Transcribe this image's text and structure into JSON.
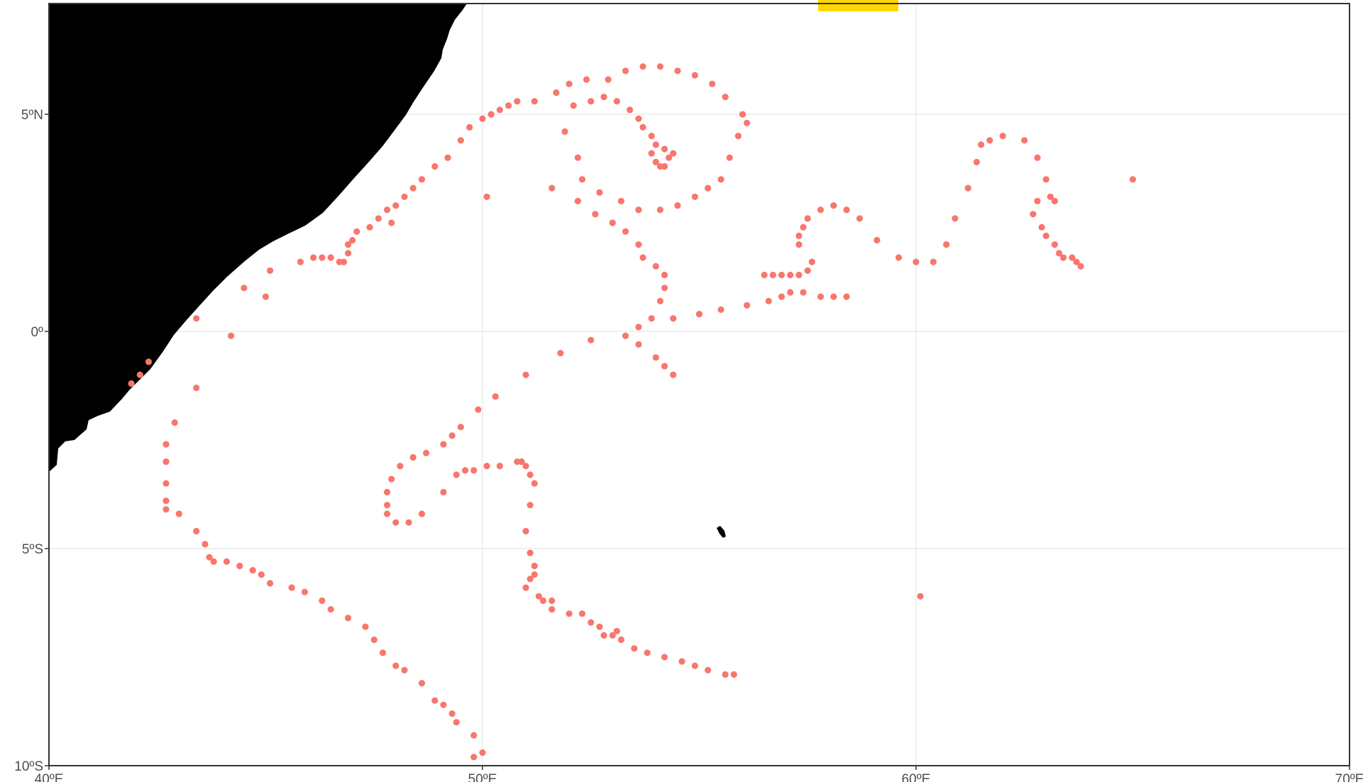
{
  "map": {
    "colors": {
      "points": "#F8766D",
      "land": "#000000",
      "highlight": "#FFD700",
      "grid": "#EBEBEB",
      "frame": "#333333",
      "tick_text": "#4D4D4D"
    },
    "x_axis": {
      "range": [
        40,
        70
      ],
      "ticks": [
        {
          "value": 40,
          "label": "40ºE"
        },
        {
          "value": 50,
          "label": "50ºE"
        },
        {
          "value": 60,
          "label": "60ºE"
        },
        {
          "value": 70,
          "label": "70ºE"
        }
      ]
    },
    "y_axis": {
      "range": [
        -10,
        7.55
      ],
      "ticks": [
        {
          "value": 5,
          "label": "5ºN"
        },
        {
          "value": 0,
          "label": "0º"
        },
        {
          "value": -5,
          "label": "5ºS"
        },
        {
          "value": -10,
          "label": "10ºS"
        }
      ]
    },
    "grid": true,
    "legend": "none"
  },
  "chart_data": {
    "type": "scatter",
    "x_unit": "degrees longitude (E)",
    "y_unit": "degrees latitude (N positive)",
    "points": [
      [
        49.8,
        -9.8
      ],
      [
        50.0,
        -9.7
      ],
      [
        49.8,
        -9.3
      ],
      [
        49.4,
        -9.0
      ],
      [
        49.3,
        -8.8
      ],
      [
        49.1,
        -8.6
      ],
      [
        48.9,
        -8.5
      ],
      [
        48.6,
        -8.1
      ],
      [
        48.2,
        -7.8
      ],
      [
        48.0,
        -7.7
      ],
      [
        47.7,
        -7.4
      ],
      [
        47.5,
        -7.1
      ],
      [
        47.3,
        -6.8
      ],
      [
        46.9,
        -6.6
      ],
      [
        46.5,
        -6.4
      ],
      [
        46.3,
        -6.2
      ],
      [
        45.9,
        -6.0
      ],
      [
        45.6,
        -5.9
      ],
      [
        45.1,
        -5.8
      ],
      [
        44.9,
        -5.6
      ],
      [
        44.7,
        -5.5
      ],
      [
        44.4,
        -5.4
      ],
      [
        44.1,
        -5.3
      ],
      [
        43.8,
        -5.3
      ],
      [
        43.7,
        -5.2
      ],
      [
        43.6,
        -4.9
      ],
      [
        43.4,
        -4.6
      ],
      [
        43.0,
        -4.2
      ],
      [
        42.7,
        -4.1
      ],
      [
        42.7,
        -3.9
      ],
      [
        42.7,
        -3.5
      ],
      [
        42.7,
        -3.0
      ],
      [
        42.7,
        -2.6
      ],
      [
        42.9,
        -2.1
      ],
      [
        43.4,
        -1.3
      ],
      [
        42.3,
        -0.7
      ],
      [
        42.1,
        -1.0
      ],
      [
        41.9,
        -1.2
      ],
      [
        43.4,
        0.3
      ],
      [
        44.2,
        -0.1
      ],
      [
        44.5,
        1.0
      ],
      [
        45.0,
        0.8
      ],
      [
        45.1,
        1.4
      ],
      [
        45.8,
        1.6
      ],
      [
        46.1,
        1.7
      ],
      [
        46.3,
        1.7
      ],
      [
        46.5,
        1.7
      ],
      [
        46.7,
        1.6
      ],
      [
        46.8,
        1.6
      ],
      [
        46.9,
        1.8
      ],
      [
        46.9,
        2.0
      ],
      [
        47.0,
        2.1
      ],
      [
        47.1,
        2.3
      ],
      [
        47.4,
        2.4
      ],
      [
        47.6,
        2.6
      ],
      [
        47.8,
        2.8
      ],
      [
        47.9,
        2.5
      ],
      [
        48.0,
        2.9
      ],
      [
        48.2,
        3.1
      ],
      [
        48.4,
        3.3
      ],
      [
        48.6,
        3.5
      ],
      [
        48.9,
        3.8
      ],
      [
        49.2,
        4.0
      ],
      [
        49.5,
        4.4
      ],
      [
        49.7,
        4.7
      ],
      [
        50.0,
        4.9
      ],
      [
        50.2,
        5.0
      ],
      [
        50.4,
        5.1
      ],
      [
        50.6,
        5.2
      ],
      [
        50.8,
        5.3
      ],
      [
        51.2,
        5.3
      ],
      [
        51.7,
        5.5
      ],
      [
        52.0,
        5.7
      ],
      [
        52.4,
        5.8
      ],
      [
        52.9,
        5.8
      ],
      [
        53.3,
        6.0
      ],
      [
        53.7,
        6.1
      ],
      [
        54.1,
        6.1
      ],
      [
        54.5,
        6.0
      ],
      [
        54.9,
        5.9
      ],
      [
        55.3,
        5.7
      ],
      [
        55.6,
        5.4
      ],
      [
        56.0,
        5.0
      ],
      [
        56.1,
        4.8
      ],
      [
        55.9,
        4.5
      ],
      [
        55.7,
        4.0
      ],
      [
        55.5,
        3.5
      ],
      [
        55.2,
        3.3
      ],
      [
        54.9,
        3.1
      ],
      [
        54.5,
        2.9
      ],
      [
        54.1,
        2.8
      ],
      [
        53.6,
        2.8
      ],
      [
        53.2,
        3.0
      ],
      [
        52.7,
        3.2
      ],
      [
        52.3,
        3.5
      ],
      [
        52.2,
        4.0
      ],
      [
        51.9,
        4.6
      ],
      [
        52.1,
        5.2
      ],
      [
        52.5,
        5.3
      ],
      [
        52.8,
        5.4
      ],
      [
        53.1,
        5.3
      ],
      [
        53.4,
        5.1
      ],
      [
        53.6,
        4.9
      ],
      [
        53.7,
        4.7
      ],
      [
        53.9,
        4.5
      ],
      [
        54.0,
        4.3
      ],
      [
        54.2,
        4.2
      ],
      [
        54.3,
        4.0
      ],
      [
        54.2,
        3.8
      ],
      [
        54.1,
        3.8
      ],
      [
        54.0,
        3.9
      ],
      [
        53.9,
        4.1
      ],
      [
        54.4,
        4.1
      ],
      [
        50.1,
        3.1
      ],
      [
        51.6,
        3.3
      ],
      [
        52.2,
        3.0
      ],
      [
        52.6,
        2.7
      ],
      [
        53.0,
        2.5
      ],
      [
        53.3,
        2.3
      ],
      [
        53.6,
        2.0
      ],
      [
        53.7,
        1.7
      ],
      [
        54.0,
        1.5
      ],
      [
        54.2,
        1.3
      ],
      [
        54.2,
        1.0
      ],
      [
        54.1,
        0.7
      ],
      [
        53.9,
        0.3
      ],
      [
        53.6,
        0.1
      ],
      [
        53.3,
        -0.1
      ],
      [
        53.6,
        -0.3
      ],
      [
        54.0,
        -0.6
      ],
      [
        54.2,
        -0.8
      ],
      [
        54.4,
        -1.0
      ],
      [
        54.4,
        0.3
      ],
      [
        55.0,
        0.4
      ],
      [
        55.5,
        0.5
      ],
      [
        56.1,
        0.6
      ],
      [
        56.6,
        0.7
      ],
      [
        56.9,
        0.8
      ],
      [
        57.1,
        0.9
      ],
      [
        57.4,
        0.9
      ],
      [
        57.8,
        0.8
      ],
      [
        58.1,
        0.8
      ],
      [
        58.4,
        0.8
      ],
      [
        56.5,
        1.3
      ],
      [
        56.7,
        1.3
      ],
      [
        56.9,
        1.3
      ],
      [
        57.1,
        1.3
      ],
      [
        57.3,
        1.3
      ],
      [
        57.5,
        1.4
      ],
      [
        57.6,
        1.6
      ],
      [
        57.3,
        2.0
      ],
      [
        57.3,
        2.2
      ],
      [
        57.4,
        2.4
      ],
      [
        57.5,
        2.6
      ],
      [
        57.8,
        2.8
      ],
      [
        58.1,
        2.9
      ],
      [
        58.4,
        2.8
      ],
      [
        58.7,
        2.6
      ],
      [
        59.1,
        2.1
      ],
      [
        59.6,
        1.7
      ],
      [
        60.0,
        1.6
      ],
      [
        60.4,
        1.6
      ],
      [
        60.7,
        2.0
      ],
      [
        60.9,
        2.6
      ],
      [
        61.2,
        3.3
      ],
      [
        61.4,
        3.9
      ],
      [
        61.5,
        4.3
      ],
      [
        61.7,
        4.4
      ],
      [
        62.0,
        4.5
      ],
      [
        62.5,
        4.4
      ],
      [
        62.8,
        4.0
      ],
      [
        63.0,
        3.5
      ],
      [
        63.1,
        3.1
      ],
      [
        63.2,
        3.0
      ],
      [
        63.2,
        3.0
      ],
      [
        62.8,
        3.0
      ],
      [
        62.7,
        2.7
      ],
      [
        62.9,
        2.4
      ],
      [
        63.0,
        2.2
      ],
      [
        63.2,
        2.0
      ],
      [
        63.3,
        1.8
      ],
      [
        63.4,
        1.7
      ],
      [
        63.6,
        1.7
      ],
      [
        63.7,
        1.6
      ],
      [
        63.8,
        1.5
      ],
      [
        65.0,
        3.5
      ],
      [
        51.0,
        -1.0
      ],
      [
        51.8,
        -0.5
      ],
      [
        52.5,
        -0.2
      ],
      [
        50.3,
        -1.5
      ],
      [
        49.9,
        -1.8
      ],
      [
        49.5,
        -2.2
      ],
      [
        49.3,
        -2.4
      ],
      [
        49.1,
        -2.6
      ],
      [
        48.7,
        -2.8
      ],
      [
        48.4,
        -2.9
      ],
      [
        48.1,
        -3.1
      ],
      [
        47.9,
        -3.4
      ],
      [
        47.8,
        -3.7
      ],
      [
        47.8,
        -4.0
      ],
      [
        47.8,
        -4.2
      ],
      [
        48.0,
        -4.4
      ],
      [
        48.3,
        -4.4
      ],
      [
        48.6,
        -4.2
      ],
      [
        49.1,
        -3.7
      ],
      [
        49.4,
        -3.3
      ],
      [
        49.6,
        -3.2
      ],
      [
        49.8,
        -3.2
      ],
      [
        50.1,
        -3.1
      ],
      [
        50.4,
        -3.1
      ],
      [
        50.8,
        -3.0
      ],
      [
        50.9,
        -3.0
      ],
      [
        51.0,
        -3.1
      ],
      [
        51.1,
        -3.3
      ],
      [
        51.2,
        -3.5
      ],
      [
        51.1,
        -4.0
      ],
      [
        51.0,
        -4.6
      ],
      [
        51.1,
        -5.1
      ],
      [
        51.2,
        -5.4
      ],
      [
        51.2,
        -5.6
      ],
      [
        51.1,
        -5.7
      ],
      [
        51.0,
        -5.9
      ],
      [
        51.3,
        -6.1
      ],
      [
        51.4,
        -6.2
      ],
      [
        51.6,
        -6.2
      ],
      [
        51.6,
        -6.4
      ],
      [
        52.0,
        -6.5
      ],
      [
        52.3,
        -6.5
      ],
      [
        52.5,
        -6.7
      ],
      [
        52.7,
        -6.8
      ],
      [
        52.8,
        -7.0
      ],
      [
        53.0,
        -7.0
      ],
      [
        53.1,
        -6.9
      ],
      [
        53.2,
        -7.1
      ],
      [
        53.5,
        -7.3
      ],
      [
        53.8,
        -7.4
      ],
      [
        54.2,
        -7.5
      ],
      [
        54.6,
        -7.6
      ],
      [
        54.9,
        -7.7
      ],
      [
        55.2,
        -7.8
      ],
      [
        55.6,
        -7.9
      ],
      [
        55.8,
        -7.9
      ],
      [
        60.1,
        -6.1
      ]
    ]
  }
}
